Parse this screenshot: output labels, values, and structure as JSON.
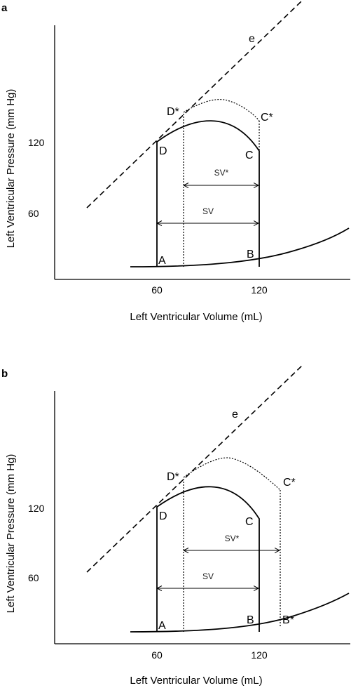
{
  "panels": [
    {
      "letter": "a",
      "x_axis_title": "Left Ventricular Volume (mL)",
      "y_axis_title": "Left Ventricular Pressure (mm Hg)",
      "x_ticks": [
        "60",
        "120"
      ],
      "y_ticks": [
        "60",
        "120"
      ],
      "elastance_label": "e",
      "points": {
        "A": "A",
        "B": "B",
        "C": "C",
        "D": "D",
        "C_star": "C*",
        "D_star": "D*"
      },
      "sv_label": "SV",
      "sv_star_label": "SV*"
    },
    {
      "letter": "b",
      "x_axis_title": "Left Ventricular Volume (mL)",
      "y_axis_title": "Left Ventricular Pressure (mm Hg)",
      "x_ticks": [
        "60",
        "120"
      ],
      "y_ticks": [
        "60",
        "120"
      ],
      "elastance_label": "e",
      "points": {
        "A": "A",
        "B": "B",
        "B_star": "B*",
        "C": "C",
        "D": "D",
        "C_star": "C*",
        "D_star": "D*"
      },
      "sv_label": "SV",
      "sv_star_label": "SV*"
    }
  ]
}
